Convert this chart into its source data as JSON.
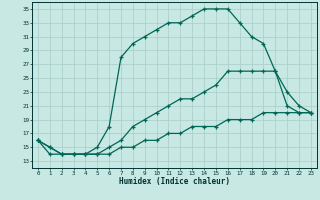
{
  "xlabel": "Humidex (Indice chaleur)",
  "bg_color": "#c8e8e4",
  "grid_color": "#a8ccc8",
  "line_color": "#006655",
  "xlim": [
    -0.5,
    23.5
  ],
  "ylim": [
    12,
    36
  ],
  "yticks": [
    13,
    15,
    17,
    19,
    21,
    23,
    25,
    27,
    29,
    31,
    33,
    35
  ],
  "xticks": [
    0,
    1,
    2,
    3,
    4,
    5,
    6,
    7,
    8,
    9,
    10,
    11,
    12,
    13,
    14,
    15,
    16,
    17,
    18,
    19,
    20,
    21,
    22,
    23
  ],
  "hours": [
    0,
    1,
    2,
    3,
    4,
    5,
    6,
    7,
    8,
    9,
    10,
    11,
    12,
    13,
    14,
    15,
    16,
    17,
    18,
    19,
    20,
    21,
    22,
    23
  ],
  "line_max": [
    16,
    15,
    14,
    14,
    14,
    15,
    18,
    28,
    30,
    31,
    32,
    33,
    33,
    34,
    35,
    35,
    35,
    33,
    31,
    30,
    26,
    21,
    20,
    20
  ],
  "line_mean": [
    16,
    15,
    14,
    14,
    14,
    14,
    15,
    16,
    18,
    19,
    20,
    21,
    22,
    22,
    23,
    24,
    26,
    26,
    26,
    26,
    26,
    23,
    21,
    20
  ],
  "line_min": [
    16,
    14,
    14,
    14,
    14,
    14,
    14,
    15,
    15,
    16,
    16,
    17,
    17,
    18,
    18,
    18,
    19,
    19,
    19,
    20,
    20,
    20,
    20,
    20
  ]
}
